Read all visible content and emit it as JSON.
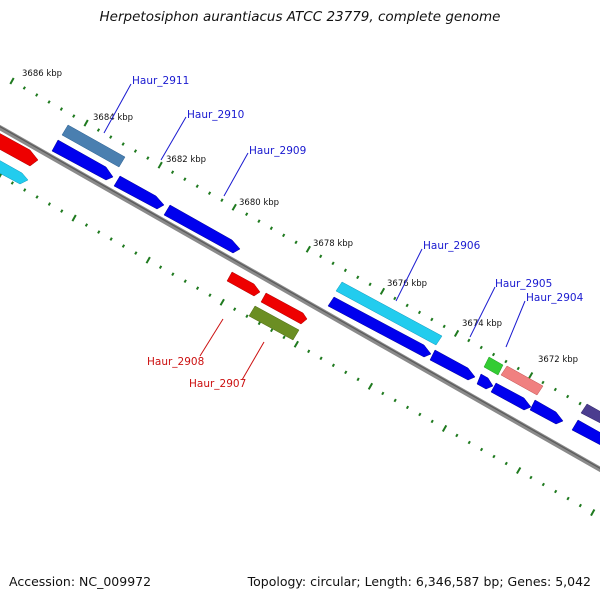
{
  "title": "Herpetosiphon aurantiacus ATCC 23779, complete genome",
  "footer": {
    "accession": "Accession: NC_009972",
    "summary": "Topology: circular; Length: 6,346,587 bp; Genes: 5,042"
  },
  "ticks": [
    "3686 kbp",
    "3684 kbp",
    "3682 kbp",
    "3680 kbp",
    "3678 kbp",
    "3676 kbp",
    "3674 kbp",
    "3672 kbp"
  ],
  "gene_labels": {
    "haur_2911": "Haur_2911",
    "haur_2910": "Haur_2910",
    "haur_2909": "Haur_2909",
    "haur_2908": "Haur_2908",
    "haur_2907": "Haur_2907",
    "haur_2906": "Haur_2906",
    "haur_2905": "Haur_2905",
    "haur_2904": "Haur_2904"
  },
  "colors": {
    "cds_blue": "#0000ee",
    "red": "#ee0000",
    "cyan": "#22ccee",
    "steel_blue": "#4a7fb0",
    "olive": "#6b8e23",
    "green": "#33cc33",
    "salmon": "#f08080",
    "purple": "#4b3d8f",
    "backbone": "#777777",
    "tick_green": "#1f7a1f"
  }
}
